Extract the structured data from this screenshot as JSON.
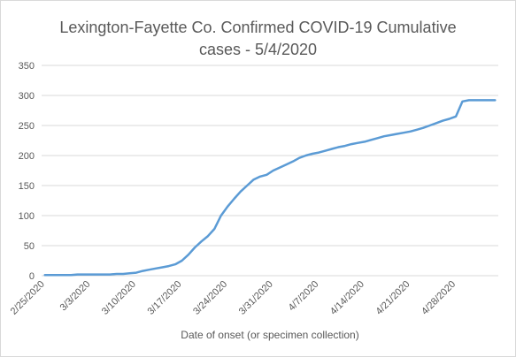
{
  "chart_data": {
    "type": "line",
    "title_line1": "Lexington-Fayette Co. Confirmed COVID-19 Cumulative",
    "title_line2": "cases - 5/4/2020",
    "xlabel": "Date of onset (or specimen collection)",
    "ylabel": "",
    "ylim": [
      0,
      350
    ],
    "yticks": [
      0,
      50,
      100,
      150,
      200,
      250,
      300,
      350
    ],
    "xtick_labels": [
      "2/25/2020",
      "3/3/2020",
      "3/10/2020",
      "3/17/2020",
      "3/24/2020",
      "3/31/2020",
      "4/7/2020",
      "4/14/2020",
      "4/21/2020",
      "4/28/2020"
    ],
    "grid": true,
    "legend": "none",
    "line_color": "#5b9bd5",
    "series": [
      {
        "x": [
          "2/25/2020",
          "2/26/2020",
          "2/27/2020",
          "2/28/2020",
          "2/29/2020",
          "3/1/2020",
          "3/2/2020",
          "3/3/2020",
          "3/4/2020",
          "3/5/2020",
          "3/6/2020",
          "3/7/2020",
          "3/8/2020",
          "3/9/2020",
          "3/10/2020",
          "3/11/2020",
          "3/12/2020",
          "3/13/2020",
          "3/14/2020",
          "3/15/2020",
          "3/16/2020",
          "3/17/2020",
          "3/18/2020",
          "3/19/2020",
          "3/20/2020",
          "3/21/2020",
          "3/22/2020",
          "3/23/2020",
          "3/24/2020",
          "3/25/2020",
          "3/26/2020",
          "3/27/2020",
          "3/28/2020",
          "3/29/2020",
          "3/30/2020",
          "3/31/2020",
          "4/1/2020",
          "4/2/2020",
          "4/3/2020",
          "4/4/2020",
          "4/5/2020",
          "4/6/2020",
          "4/7/2020",
          "4/8/2020",
          "4/9/2020",
          "4/10/2020",
          "4/11/2020",
          "4/12/2020",
          "4/13/2020",
          "4/14/2020",
          "4/15/2020",
          "4/16/2020",
          "4/17/2020",
          "4/18/2020",
          "4/19/2020",
          "4/20/2020",
          "4/21/2020",
          "4/22/2020",
          "4/23/2020",
          "4/24/2020",
          "4/25/2020",
          "4/26/2020",
          "4/27/2020",
          "4/28/2020",
          "4/29/2020",
          "4/30/2020",
          "5/1/2020",
          "5/2/2020",
          "5/3/2020",
          "5/4/2020"
        ],
        "values": [
          1,
          1,
          1,
          1,
          1,
          2,
          2,
          2,
          2,
          2,
          2,
          3,
          3,
          4,
          5,
          8,
          10,
          12,
          14,
          16,
          19,
          25,
          35,
          47,
          57,
          66,
          78,
          100,
          115,
          128,
          140,
          150,
          160,
          165,
          168,
          175,
          180,
          185,
          190,
          196,
          200,
          203,
          205,
          208,
          211,
          214,
          216,
          219,
          221,
          223,
          226,
          229,
          232,
          234,
          236,
          238,
          240,
          243,
          246,
          250,
          254,
          258,
          261,
          265,
          290,
          292,
          292,
          292,
          292,
          292
        ]
      }
    ]
  }
}
